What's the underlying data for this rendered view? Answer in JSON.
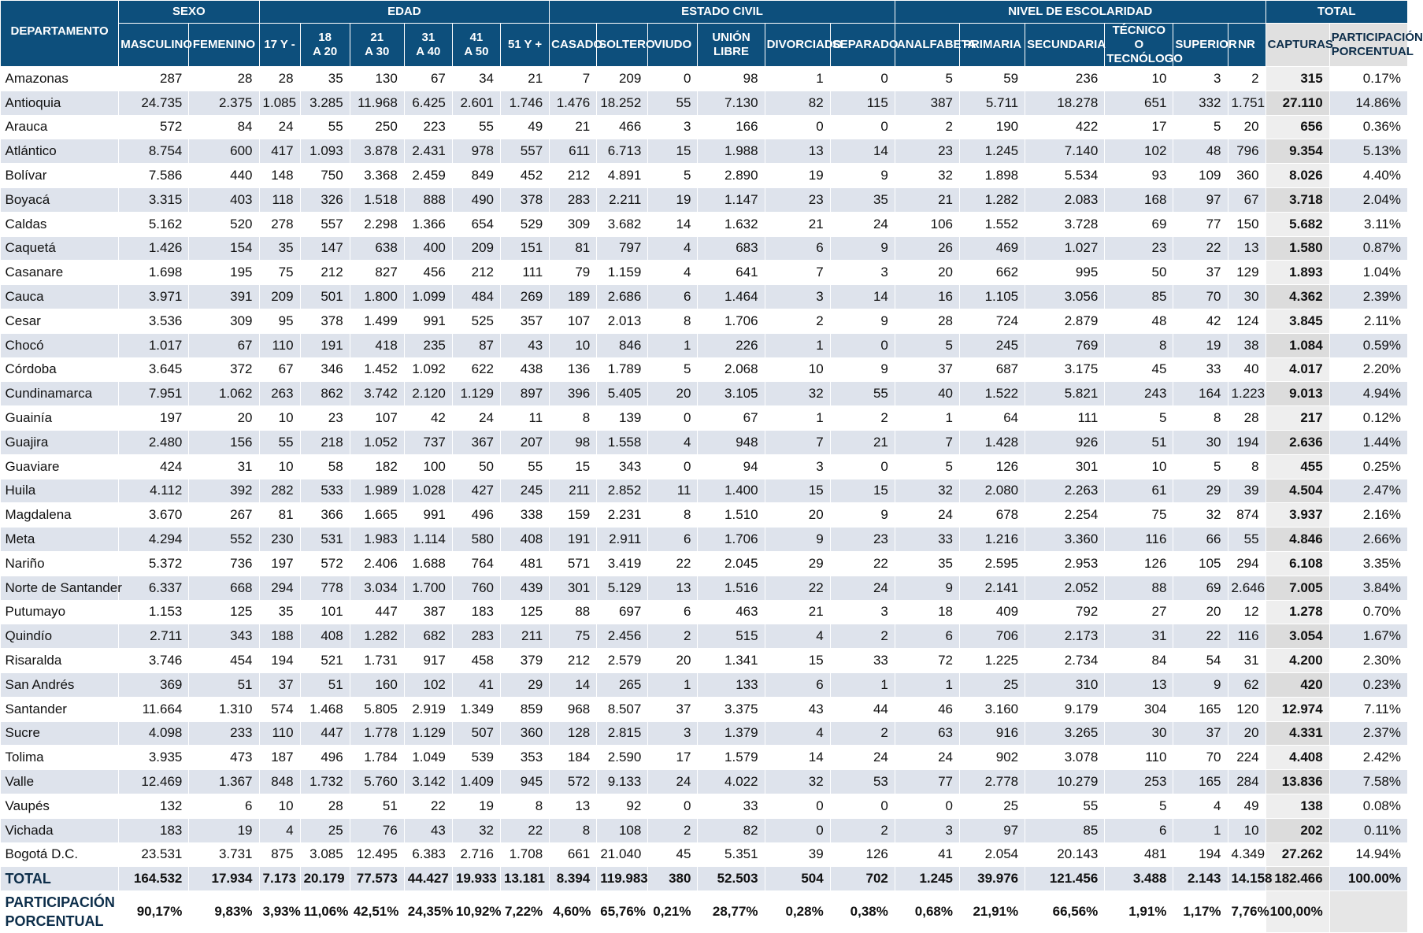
{
  "table": {
    "group_headers": {
      "departamento": "DEPARTAMENTO",
      "sexo": "SEXO",
      "edad": "EDAD",
      "estado_civil": "ESTADO CIVIL",
      "nivel_escolaridad": "NIVEL DE ESCOLARIDAD",
      "total": "TOTAL"
    },
    "sub_headers": [
      "MASCULINO",
      "FEMENINO",
      "17 Y -",
      "18\nA 20",
      "21\nA 30",
      "31\nA 40",
      "41\nA 50",
      "51 Y +",
      "CASADO",
      "SOLTERO",
      "VIUDO",
      "UNIÓN\nLIBRE",
      "DIVORCIADO",
      "SEPARADO",
      "ANALFABETA",
      "PRIMARIA",
      "SECUNDARIA",
      "TÉCNICO O\nTECNÓLOGO",
      "SUPERIOR",
      "NR",
      "CAPTURAS",
      "PARTICIPACIÓN\nPORCENTUAL"
    ],
    "rows": [
      [
        "Amazonas",
        "287",
        "28",
        "28",
        "35",
        "130",
        "67",
        "34",
        "21",
        "7",
        "209",
        "0",
        "98",
        "1",
        "0",
        "5",
        "59",
        "236",
        "10",
        "3",
        "2",
        "315",
        "0.17%"
      ],
      [
        "Antioquia",
        "24.735",
        "2.375",
        "1.085",
        "3.285",
        "11.968",
        "6.425",
        "2.601",
        "1.746",
        "1.476",
        "18.252",
        "55",
        "7.130",
        "82",
        "115",
        "387",
        "5.711",
        "18.278",
        "651",
        "332",
        "1.751",
        "27.110",
        "14.86%"
      ],
      [
        "Arauca",
        "572",
        "84",
        "24",
        "55",
        "250",
        "223",
        "55",
        "49",
        "21",
        "466",
        "3",
        "166",
        "0",
        "0",
        "2",
        "190",
        "422",
        "17",
        "5",
        "20",
        "656",
        "0.36%"
      ],
      [
        "Atlántico",
        "8.754",
        "600",
        "417",
        "1.093",
        "3.878",
        "2.431",
        "978",
        "557",
        "611",
        "6.713",
        "15",
        "1.988",
        "13",
        "14",
        "23",
        "1.245",
        "7.140",
        "102",
        "48",
        "796",
        "9.354",
        "5.13%"
      ],
      [
        "Bolívar",
        "7.586",
        "440",
        "148",
        "750",
        "3.368",
        "2.459",
        "849",
        "452",
        "212",
        "4.891",
        "5",
        "2.890",
        "19",
        "9",
        "32",
        "1.898",
        "5.534",
        "93",
        "109",
        "360",
        "8.026",
        "4.40%"
      ],
      [
        "Boyacá",
        "3.315",
        "403",
        "118",
        "326",
        "1.518",
        "888",
        "490",
        "378",
        "283",
        "2.211",
        "19",
        "1.147",
        "23",
        "35",
        "21",
        "1.282",
        "2.083",
        "168",
        "97",
        "67",
        "3.718",
        "2.04%"
      ],
      [
        "Caldas",
        "5.162",
        "520",
        "278",
        "557",
        "2.298",
        "1.366",
        "654",
        "529",
        "309",
        "3.682",
        "14",
        "1.632",
        "21",
        "24",
        "106",
        "1.552",
        "3.728",
        "69",
        "77",
        "150",
        "5.682",
        "3.11%"
      ],
      [
        "Caquetá",
        "1.426",
        "154",
        "35",
        "147",
        "638",
        "400",
        "209",
        "151",
        "81",
        "797",
        "4",
        "683",
        "6",
        "9",
        "26",
        "469",
        "1.027",
        "23",
        "22",
        "13",
        "1.580",
        "0.87%"
      ],
      [
        "Casanare",
        "1.698",
        "195",
        "75",
        "212",
        "827",
        "456",
        "212",
        "111",
        "79",
        "1.159",
        "4",
        "641",
        "7",
        "3",
        "20",
        "662",
        "995",
        "50",
        "37",
        "129",
        "1.893",
        "1.04%"
      ],
      [
        "Cauca",
        "3.971",
        "391",
        "209",
        "501",
        "1.800",
        "1.099",
        "484",
        "269",
        "189",
        "2.686",
        "6",
        "1.464",
        "3",
        "14",
        "16",
        "1.105",
        "3.056",
        "85",
        "70",
        "30",
        "4.362",
        "2.39%"
      ],
      [
        "Cesar",
        "3.536",
        "309",
        "95",
        "378",
        "1.499",
        "991",
        "525",
        "357",
        "107",
        "2.013",
        "8",
        "1.706",
        "2",
        "9",
        "28",
        "724",
        "2.879",
        "48",
        "42",
        "124",
        "3.845",
        "2.11%"
      ],
      [
        "Chocó",
        "1.017",
        "67",
        "110",
        "191",
        "418",
        "235",
        "87",
        "43",
        "10",
        "846",
        "1",
        "226",
        "1",
        "0",
        "5",
        "245",
        "769",
        "8",
        "19",
        "38",
        "1.084",
        "0.59%"
      ],
      [
        "Córdoba",
        "3.645",
        "372",
        "67",
        "346",
        "1.452",
        "1.092",
        "622",
        "438",
        "136",
        "1.789",
        "5",
        "2.068",
        "10",
        "9",
        "37",
        "687",
        "3.175",
        "45",
        "33",
        "40",
        "4.017",
        "2.20%"
      ],
      [
        "Cundinamarca",
        "7.951",
        "1.062",
        "263",
        "862",
        "3.742",
        "2.120",
        "1.129",
        "897",
        "396",
        "5.405",
        "20",
        "3.105",
        "32",
        "55",
        "40",
        "1.522",
        "5.821",
        "243",
        "164",
        "1.223",
        "9.013",
        "4.94%"
      ],
      [
        "Guainía",
        "197",
        "20",
        "10",
        "23",
        "107",
        "42",
        "24",
        "11",
        "8",
        "139",
        "0",
        "67",
        "1",
        "2",
        "1",
        "64",
        "111",
        "5",
        "8",
        "28",
        "217",
        "0.12%"
      ],
      [
        "Guajira",
        "2.480",
        "156",
        "55",
        "218",
        "1.052",
        "737",
        "367",
        "207",
        "98",
        "1.558",
        "4",
        "948",
        "7",
        "21",
        "7",
        "1.428",
        "926",
        "51",
        "30",
        "194",
        "2.636",
        "1.44%"
      ],
      [
        "Guaviare",
        "424",
        "31",
        "10",
        "58",
        "182",
        "100",
        "50",
        "55",
        "15",
        "343",
        "0",
        "94",
        "3",
        "0",
        "5",
        "126",
        "301",
        "10",
        "5",
        "8",
        "455",
        "0.25%"
      ],
      [
        "Huila",
        "4.112",
        "392",
        "282",
        "533",
        "1.989",
        "1.028",
        "427",
        "245",
        "211",
        "2.852",
        "11",
        "1.400",
        "15",
        "15",
        "32",
        "2.080",
        "2.263",
        "61",
        "29",
        "39",
        "4.504",
        "2.47%"
      ],
      [
        "Magdalena",
        "3.670",
        "267",
        "81",
        "366",
        "1.665",
        "991",
        "496",
        "338",
        "159",
        "2.231",
        "8",
        "1.510",
        "20",
        "9",
        "24",
        "678",
        "2.254",
        "75",
        "32",
        "874",
        "3.937",
        "2.16%"
      ],
      [
        "Meta",
        "4.294",
        "552",
        "230",
        "531",
        "1.983",
        "1.114",
        "580",
        "408",
        "191",
        "2.911",
        "6",
        "1.706",
        "9",
        "23",
        "33",
        "1.216",
        "3.360",
        "116",
        "66",
        "55",
        "4.846",
        "2.66%"
      ],
      [
        "Nariño",
        "5.372",
        "736",
        "197",
        "572",
        "2.406",
        "1.688",
        "764",
        "481",
        "571",
        "3.419",
        "22",
        "2.045",
        "29",
        "22",
        "35",
        "2.595",
        "2.953",
        "126",
        "105",
        "294",
        "6.108",
        "3.35%"
      ],
      [
        "Norte de Santander",
        "6.337",
        "668",
        "294",
        "778",
        "3.034",
        "1.700",
        "760",
        "439",
        "301",
        "5.129",
        "13",
        "1.516",
        "22",
        "24",
        "9",
        "2.141",
        "2.052",
        "88",
        "69",
        "2.646",
        "7.005",
        "3.84%"
      ],
      [
        "Putumayo",
        "1.153",
        "125",
        "35",
        "101",
        "447",
        "387",
        "183",
        "125",
        "88",
        "697",
        "6",
        "463",
        "21",
        "3",
        "18",
        "409",
        "792",
        "27",
        "20",
        "12",
        "1.278",
        "0.70%"
      ],
      [
        "Quindío",
        "2.711",
        "343",
        "188",
        "408",
        "1.282",
        "682",
        "283",
        "211",
        "75",
        "2.456",
        "2",
        "515",
        "4",
        "2",
        "6",
        "706",
        "2.173",
        "31",
        "22",
        "116",
        "3.054",
        "1.67%"
      ],
      [
        "Risaralda",
        "3.746",
        "454",
        "194",
        "521",
        "1.731",
        "917",
        "458",
        "379",
        "212",
        "2.579",
        "20",
        "1.341",
        "15",
        "33",
        "72",
        "1.225",
        "2.734",
        "84",
        "54",
        "31",
        "4.200",
        "2.30%"
      ],
      [
        "San Andrés",
        "369",
        "51",
        "37",
        "51",
        "160",
        "102",
        "41",
        "29",
        "14",
        "265",
        "1",
        "133",
        "6",
        "1",
        "1",
        "25",
        "310",
        "13",
        "9",
        "62",
        "420",
        "0.23%"
      ],
      [
        "Santander",
        "11.664",
        "1.310",
        "574",
        "1.468",
        "5.805",
        "2.919",
        "1.349",
        "859",
        "968",
        "8.507",
        "37",
        "3.375",
        "43",
        "44",
        "46",
        "3.160",
        "9.179",
        "304",
        "165",
        "120",
        "12.974",
        "7.11%"
      ],
      [
        "Sucre",
        "4.098",
        "233",
        "110",
        "447",
        "1.778",
        "1.129",
        "507",
        "360",
        "128",
        "2.815",
        "3",
        "1.379",
        "4",
        "2",
        "63",
        "916",
        "3.265",
        "30",
        "37",
        "20",
        "4.331",
        "2.37%"
      ],
      [
        "Tolima",
        "3.935",
        "473",
        "187",
        "496",
        "1.784",
        "1.049",
        "539",
        "353",
        "184",
        "2.590",
        "17",
        "1.579",
        "14",
        "24",
        "24",
        "902",
        "3.078",
        "110",
        "70",
        "224",
        "4.408",
        "2.42%"
      ],
      [
        "Valle",
        "12.469",
        "1.367",
        "848",
        "1.732",
        "5.760",
        "3.142",
        "1.409",
        "945",
        "572",
        "9.133",
        "24",
        "4.022",
        "32",
        "53",
        "77",
        "2.778",
        "10.279",
        "253",
        "165",
        "284",
        "13.836",
        "7.58%"
      ],
      [
        "Vaupés",
        "132",
        "6",
        "10",
        "28",
        "51",
        "22",
        "19",
        "8",
        "13",
        "92",
        "0",
        "33",
        "0",
        "0",
        "0",
        "25",
        "55",
        "5",
        "4",
        "49",
        "138",
        "0.08%"
      ],
      [
        "Vichada",
        "183",
        "19",
        "4",
        "25",
        "76",
        "43",
        "32",
        "22",
        "8",
        "108",
        "2",
        "82",
        "0",
        "2",
        "3",
        "97",
        "85",
        "6",
        "1",
        "10",
        "202",
        "0.11%"
      ],
      [
        "Bogotá D.C.",
        "23.531",
        "3.731",
        "875",
        "3.085",
        "12.495",
        "6.383",
        "2.716",
        "1.708",
        "661",
        "21.040",
        "45",
        "5.351",
        "39",
        "126",
        "41",
        "2.054",
        "20.143",
        "481",
        "194",
        "4.349",
        "27.262",
        "14.94%"
      ]
    ],
    "total_row": [
      "TOTAL",
      "164.532",
      "17.934",
      "7.173",
      "20.179",
      "77.573",
      "44.427",
      "19.933",
      "13.181",
      "8.394",
      "119.983",
      "380",
      "52.503",
      "504",
      "702",
      "1.245",
      "39.976",
      "121.456",
      "3.488",
      "2.143",
      "14.158",
      "182.466",
      "100.00%"
    ],
    "pct_row": [
      "PARTICIPACIÓN\nPORCENTUAL",
      "90,17%",
      "9,83%",
      "3,93%",
      "11,06%",
      "42,51%",
      "24,35%",
      "10,92%",
      "7,22%",
      "4,60%",
      "65,76%",
      "0,21%",
      "28,77%",
      "0,28%",
      "0,38%",
      "0,68%",
      "21,91%",
      "66,56%",
      "1,91%",
      "1,17%",
      "7,76%",
      "100,00%",
      ""
    ]
  }
}
